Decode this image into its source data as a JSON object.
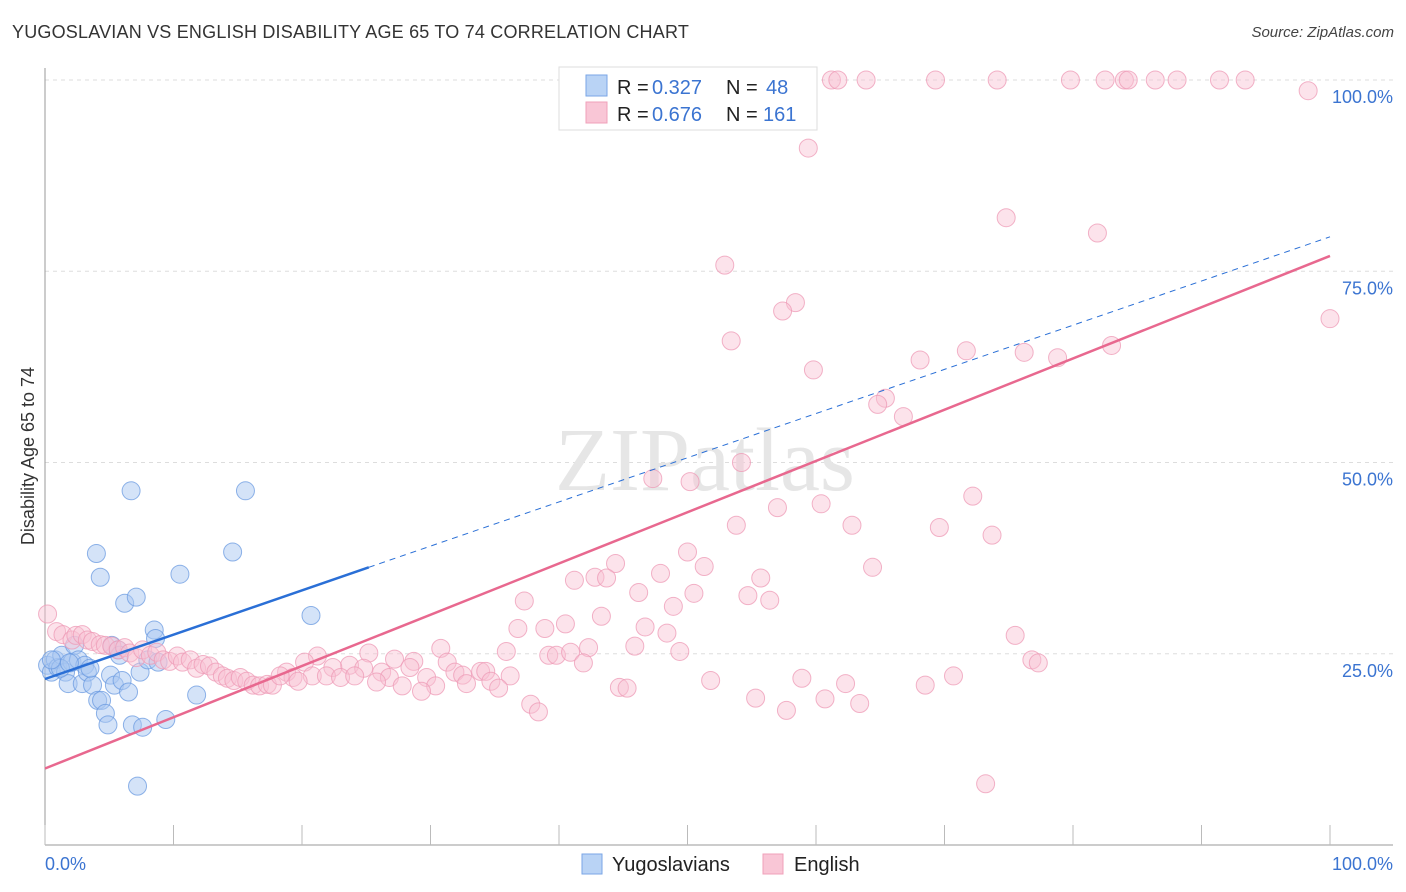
{
  "chart_data": {
    "type": "scatter",
    "title": "YUGOSLAVIAN VS ENGLISH DISABILITY AGE 65 TO 74 CORRELATION CHART",
    "source": "Source: ZipAtlas.com",
    "watermark": "ZIPatlas",
    "xlabel": "",
    "ylabel": "Disability Age 65 to 74",
    "xlim": [
      0,
      100
    ],
    "ylim": [
      0,
      100
    ],
    "x_tick_labels": [
      "0.0%",
      "100.0%"
    ],
    "y_ticks": [
      100,
      75,
      50,
      25
    ],
    "y_tick_labels": [
      "100.0%",
      "75.0%",
      "50.0%",
      "25.0%"
    ],
    "grid": true,
    "legend_position": "top-center",
    "stats": [
      {
        "r_label": "R =",
        "r": "0.327",
        "n_label": "N =",
        "n": "48"
      },
      {
        "r_label": "R =",
        "r": "0.676",
        "n_label": "N =",
        "n": "161"
      }
    ],
    "series": [
      {
        "name": "Yugoslavians",
        "color": "#6a9ae0",
        "fill": "#a9c8f2",
        "trend": {
          "x": [
            0,
            25.2,
            100
          ],
          "y": [
            21.7,
            36.3,
            79.5
          ],
          "solid_until": 25.2,
          "color": "#2a6fd6"
        },
        "points": [
          [
            0.2,
            23.5
          ],
          [
            0.5,
            22.6
          ],
          [
            0.8,
            24.2
          ],
          [
            1.0,
            23.2
          ],
          [
            1.3,
            24.8
          ],
          [
            1.6,
            22.6
          ],
          [
            1.8,
            21.1
          ],
          [
            2.1,
            23.9
          ],
          [
            2.3,
            26.1
          ],
          [
            2.6,
            24.2
          ],
          [
            2.9,
            21.1
          ],
          [
            3.1,
            23.5
          ],
          [
            3.3,
            22.6
          ],
          [
            3.7,
            20.9
          ],
          [
            4.0,
            38.1
          ],
          [
            4.3,
            35.0
          ],
          [
            4.1,
            18.9
          ],
          [
            4.4,
            18.9
          ],
          [
            4.7,
            17.2
          ],
          [
            4.9,
            15.7
          ],
          [
            5.1,
            22.2
          ],
          [
            5.2,
            26.1
          ],
          [
            5.4,
            20.9
          ],
          [
            5.7,
            25.5
          ],
          [
            6.0,
            21.5
          ],
          [
            6.2,
            31.6
          ],
          [
            6.5,
            20.0
          ],
          [
            6.7,
            46.3
          ],
          [
            6.8,
            15.7
          ],
          [
            7.1,
            32.4
          ],
          [
            7.4,
            22.6
          ],
          [
            7.6,
            15.4
          ],
          [
            8.0,
            24.2
          ],
          [
            8.5,
            28.1
          ],
          [
            8.6,
            27.0
          ],
          [
            8.8,
            23.9
          ],
          [
            9.4,
            16.4
          ],
          [
            10.5,
            35.4
          ],
          [
            11.8,
            19.6
          ],
          [
            14.6,
            38.3
          ],
          [
            15.6,
            46.3
          ],
          [
            20.7,
            30.0
          ],
          [
            7.2,
            7.7
          ],
          [
            1.2,
            23.1
          ],
          [
            1.9,
            23.8
          ],
          [
            3.5,
            23.1
          ],
          [
            5.8,
            24.8
          ],
          [
            0.5,
            24.2
          ]
        ]
      },
      {
        "name": "English",
        "color": "#ee9ab5",
        "fill": "#f8c0d2",
        "trend": {
          "x": [
            0,
            100
          ],
          "y": [
            10.0,
            77.0
          ],
          "solid_until": 100,
          "color": "#e8688f"
        },
        "points": [
          [
            52.3,
            100
          ],
          [
            61.2,
            100
          ],
          [
            61.7,
            100
          ],
          [
            63.9,
            100
          ],
          [
            69.3,
            100
          ],
          [
            74.1,
            100
          ],
          [
            79.8,
            100
          ],
          [
            82.5,
            100
          ],
          [
            84.0,
            100
          ],
          [
            84.3,
            100
          ],
          [
            86.4,
            100
          ],
          [
            88.1,
            100
          ],
          [
            91.4,
            100
          ],
          [
            93.4,
            100
          ],
          [
            98.3,
            98.6
          ],
          [
            59.4,
            91.1
          ],
          [
            74.8,
            82.0
          ],
          [
            81.9,
            80.0
          ],
          [
            52.9,
            75.8
          ],
          [
            58.4,
            70.9
          ],
          [
            57.4,
            69.8
          ],
          [
            100,
            68.8
          ],
          [
            53.4,
            65.9
          ],
          [
            71.7,
            64.6
          ],
          [
            76.2,
            64.4
          ],
          [
            68.1,
            63.4
          ],
          [
            78.8,
            63.7
          ],
          [
            83.0,
            65.3
          ],
          [
            59.8,
            62.1
          ],
          [
            65.4,
            58.4
          ],
          [
            64.8,
            57.6
          ],
          [
            66.8,
            56.0
          ],
          [
            54.2,
            50.0
          ],
          [
            47.3,
            47.9
          ],
          [
            50.2,
            47.5
          ],
          [
            72.2,
            45.6
          ],
          [
            60.4,
            44.6
          ],
          [
            57.0,
            44.1
          ],
          [
            53.8,
            41.8
          ],
          [
            62.8,
            41.8
          ],
          [
            69.6,
            41.5
          ],
          [
            73.7,
            40.5
          ],
          [
            50.0,
            38.3
          ],
          [
            51.3,
            36.4
          ],
          [
            44.4,
            36.8
          ],
          [
            64.4,
            36.3
          ],
          [
            47.9,
            35.5
          ],
          [
            41.2,
            34.6
          ],
          [
            42.8,
            35.0
          ],
          [
            43.7,
            34.9
          ],
          [
            55.7,
            34.9
          ],
          [
            46.2,
            33.0
          ],
          [
            50.5,
            32.9
          ],
          [
            54.7,
            32.6
          ],
          [
            56.4,
            32.0
          ],
          [
            37.3,
            31.9
          ],
          [
            48.9,
            31.2
          ],
          [
            43.3,
            29.9
          ],
          [
            40.5,
            28.9
          ],
          [
            36.8,
            28.3
          ],
          [
            38.9,
            28.3
          ],
          [
            46.7,
            28.5
          ],
          [
            48.4,
            27.7
          ],
          [
            75.5,
            27.4
          ],
          [
            30.8,
            25.7
          ],
          [
            42.3,
            25.8
          ],
          [
            45.9,
            26.0
          ],
          [
            39.2,
            24.8
          ],
          [
            39.8,
            24.8
          ],
          [
            40.9,
            25.2
          ],
          [
            49.4,
            25.3
          ],
          [
            35.9,
            25.3
          ],
          [
            41.9,
            23.8
          ],
          [
            76.8,
            24.2
          ],
          [
            77.3,
            23.8
          ],
          [
            25.2,
            25.1
          ],
          [
            21.2,
            24.7
          ],
          [
            27.2,
            24.3
          ],
          [
            28.7,
            24.0
          ],
          [
            31.3,
            23.9
          ],
          [
            28.4,
            23.2
          ],
          [
            20.2,
            23.9
          ],
          [
            23.7,
            23.5
          ],
          [
            22.4,
            23.2
          ],
          [
            24.8,
            23.1
          ],
          [
            18.8,
            22.6
          ],
          [
            26.2,
            22.6
          ],
          [
            31.9,
            22.6
          ],
          [
            32.5,
            22.2
          ],
          [
            33.9,
            22.7
          ],
          [
            34.3,
            22.7
          ],
          [
            36.2,
            22.1
          ],
          [
            19.3,
            21.9
          ],
          [
            20.8,
            22.1
          ],
          [
            21.9,
            22.1
          ],
          [
            23.0,
            21.9
          ],
          [
            24.1,
            22.1
          ],
          [
            26.8,
            21.9
          ],
          [
            29.7,
            21.9
          ],
          [
            32.8,
            21.1
          ],
          [
            34.7,
            21.4
          ],
          [
            25.8,
            21.3
          ],
          [
            19.7,
            21.4
          ],
          [
            27.8,
            20.8
          ],
          [
            30.4,
            20.8
          ],
          [
            35.3,
            20.5
          ],
          [
            29.3,
            20.1
          ],
          [
            51.8,
            21.5
          ],
          [
            58.9,
            21.8
          ],
          [
            62.3,
            21.1
          ],
          [
            70.7,
            22.1
          ],
          [
            68.5,
            20.9
          ],
          [
            44.7,
            20.6
          ],
          [
            45.3,
            20.5
          ],
          [
            55.3,
            19.2
          ],
          [
            60.7,
            19.1
          ],
          [
            63.4,
            18.5
          ],
          [
            57.7,
            17.6
          ],
          [
            37.8,
            18.4
          ],
          [
            38.4,
            17.4
          ],
          [
            73.2,
            8.0
          ],
          [
            0.2,
            30.2
          ],
          [
            0.9,
            27.9
          ],
          [
            1.4,
            27.5
          ],
          [
            2.1,
            26.8
          ],
          [
            2.4,
            27.4
          ],
          [
            2.9,
            27.5
          ],
          [
            3.3,
            26.8
          ],
          [
            3.7,
            26.6
          ],
          [
            4.3,
            26.2
          ],
          [
            4.7,
            26.1
          ],
          [
            5.2,
            26.0
          ],
          [
            5.7,
            25.5
          ],
          [
            6.2,
            25.8
          ],
          [
            6.6,
            25.1
          ],
          [
            7.1,
            24.5
          ],
          [
            7.6,
            25.5
          ],
          [
            8.2,
            24.8
          ],
          [
            8.7,
            25.2
          ],
          [
            9.2,
            24.2
          ],
          [
            9.7,
            24.0
          ],
          [
            10.3,
            24.7
          ],
          [
            10.7,
            23.9
          ],
          [
            11.3,
            24.2
          ],
          [
            11.8,
            23.1
          ],
          [
            12.3,
            23.6
          ],
          [
            12.8,
            23.4
          ],
          [
            13.3,
            22.6
          ],
          [
            13.8,
            22.1
          ],
          [
            14.2,
            21.8
          ],
          [
            14.7,
            21.5
          ],
          [
            15.2,
            21.9
          ],
          [
            15.7,
            21.4
          ],
          [
            16.2,
            20.9
          ],
          [
            16.7,
            20.8
          ],
          [
            17.3,
            21.0
          ],
          [
            17.7,
            20.9
          ],
          [
            18.3,
            22.1
          ]
        ]
      }
    ]
  }
}
